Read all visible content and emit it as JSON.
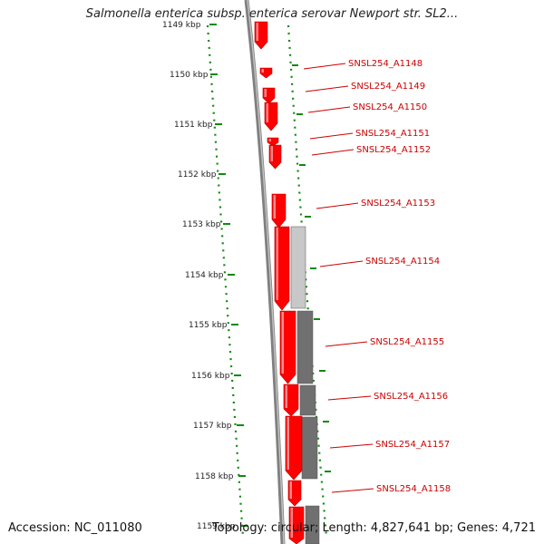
{
  "title": "Salmonella enterica subsp. enterica serovar Newport str. SL2...",
  "footer": {
    "accession": "Accession: NC_011080",
    "topology": "Topology: circular; Length: 4,827,641 bp; Genes: 4,721"
  },
  "colors": {
    "gene_forward": "#ff0000",
    "gene_grey_light": "#c8c8c8",
    "gene_grey_dark": "#707070",
    "backbone": "#808080",
    "tick": "#118811",
    "label": "#cc0000"
  },
  "ticks": [
    {
      "label": "1149 kbp"
    },
    {
      "label": "1150 kbp"
    },
    {
      "label": "1151 kbp"
    },
    {
      "label": "1152 kbp"
    },
    {
      "label": "1153 kbp"
    },
    {
      "label": "1154 kbp"
    },
    {
      "label": "1155 kbp"
    },
    {
      "label": "1156 kbp"
    },
    {
      "label": "1157 kbp"
    },
    {
      "label": "1158 kbp"
    },
    {
      "label": "1159 kbp"
    }
  ],
  "genes": [
    {
      "label": "SNSL254_A1148"
    },
    {
      "label": "SNSL254_A1149"
    },
    {
      "label": "SNSL254_A1150"
    },
    {
      "label": "SNSL254_A1151"
    },
    {
      "label": "SNSL254_A1152"
    },
    {
      "label": "SNSL254_A1153"
    },
    {
      "label": "SNSL254_A1154"
    },
    {
      "label": "SNSL254_A1155"
    },
    {
      "label": "SNSL254_A1156"
    },
    {
      "label": "SNSL254_A1157"
    },
    {
      "label": "SNSL254_A1158"
    }
  ]
}
